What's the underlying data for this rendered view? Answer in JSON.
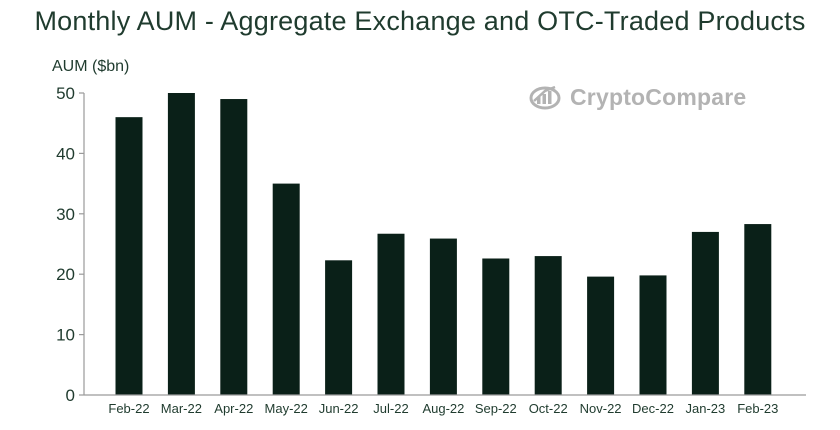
{
  "chart_data": {
    "type": "bar",
    "title": "Monthly AUM - Aggregate Exchange and OTC-Traded Products",
    "xlabel": "",
    "ylabel": "AUM ($bn)",
    "ylim": [
      0,
      50
    ],
    "yticks": [
      "0",
      "10",
      "20",
      "30",
      "40",
      "50"
    ],
    "categories": [
      "Feb-22",
      "Mar-22",
      "Apr-22",
      "May-22",
      "Jun-22",
      "Jul-22",
      "Aug-22",
      "Sep-22",
      "Oct-22",
      "Nov-22",
      "Dec-22",
      "Jan-23",
      "Feb-23"
    ],
    "values": [
      46,
      50,
      49,
      35,
      22.3,
      26.7,
      25.9,
      22.6,
      23,
      19.6,
      19.8,
      27,
      28.3
    ],
    "bar_color": "#0a2018",
    "grid": false
  },
  "logo": {
    "text": "CryptoCompare",
    "icon": "crypto-compare-logo-icon",
    "color": "#b3b3b3"
  }
}
